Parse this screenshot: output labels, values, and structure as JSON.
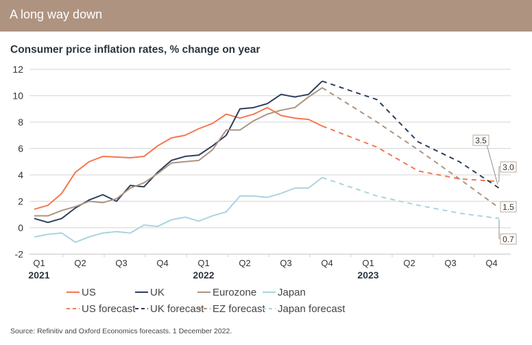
{
  "header": {
    "title": "A long way down"
  },
  "subtitle": "Consumer price inflation rates, % change on year",
  "source": "Source: Refinitiv and Oxford Economics forecasts. 1 December 2022.",
  "chart_data": {
    "type": "line",
    "title": "Consumer price inflation rates, % change on year",
    "ylim": [
      -2,
      12
    ],
    "yticks": [
      -2,
      0,
      2,
      4,
      6,
      8,
      10,
      12
    ],
    "grid": true,
    "legend_position": "bottom",
    "x_tick_labels": [
      {
        "q": "Q1",
        "year": "2021"
      },
      {
        "q": "Q2",
        "year": ""
      },
      {
        "q": "Q3",
        "year": ""
      },
      {
        "q": "Q4",
        "year": ""
      },
      {
        "q": "Q1",
        "year": "2022"
      },
      {
        "q": "Q2",
        "year": ""
      },
      {
        "q": "Q3",
        "year": ""
      },
      {
        "q": "Q4",
        "year": ""
      },
      {
        "q": "Q1",
        "year": "2023"
      },
      {
        "q": "Q2",
        "year": ""
      },
      {
        "q": "Q3",
        "year": ""
      },
      {
        "q": "Q4",
        "year": ""
      }
    ],
    "actual_months": [
      "2021-01",
      "2021-02",
      "2021-03",
      "2021-04",
      "2021-05",
      "2021-06",
      "2021-07",
      "2021-08",
      "2021-09",
      "2021-10",
      "2021-11",
      "2021-12",
      "2022-01",
      "2022-02",
      "2022-03",
      "2022-04",
      "2022-05",
      "2022-06",
      "2022-07",
      "2022-08",
      "2022-09",
      "2022-10"
    ],
    "forecast_months": [
      "2022-10",
      "2023-02",
      "2023-05",
      "2023-08",
      "2023-11"
    ],
    "series": [
      {
        "name": "US",
        "color": "#f4774f",
        "dashed": false,
        "values": [
          1.4,
          1.7,
          2.6,
          4.2,
          5.0,
          5.4,
          5.35,
          5.3,
          5.4,
          6.2,
          6.8,
          7.0,
          7.5,
          7.9,
          8.6,
          8.3,
          8.6,
          9.1,
          8.5,
          8.3,
          8.2,
          7.7
        ]
      },
      {
        "name": "UK",
        "color": "#2d3e5c",
        "dashed": false,
        "values": [
          0.7,
          0.4,
          0.7,
          1.5,
          2.1,
          2.5,
          2.0,
          3.2,
          3.1,
          4.2,
          5.1,
          5.4,
          5.5,
          6.2,
          7.0,
          9.0,
          9.1,
          9.4,
          10.1,
          9.9,
          10.1,
          11.1
        ]
      },
      {
        "name": "Eurozone",
        "color": "#ad9480",
        "dashed": false,
        "values": [
          0.9,
          0.9,
          1.3,
          1.6,
          2.0,
          1.9,
          2.2,
          3.0,
          3.4,
          4.1,
          4.9,
          5.0,
          5.1,
          5.9,
          7.4,
          7.4,
          8.1,
          8.6,
          8.9,
          9.1,
          9.9,
          10.6
        ]
      },
      {
        "name": "Japan",
        "color": "#a9d4df",
        "dashed": false,
        "values": [
          -0.7,
          -0.5,
          -0.4,
          -1.1,
          -0.7,
          -0.4,
          -0.3,
          -0.4,
          0.2,
          0.1,
          0.6,
          0.8,
          0.5,
          0.9,
          1.2,
          2.4,
          2.4,
          2.3,
          2.6,
          3.0,
          3.0,
          3.8
        ]
      },
      {
        "name": "US forecast",
        "color": "#f4774f",
        "dashed": true,
        "values": [
          7.7,
          6.1,
          4.3,
          3.7,
          3.5
        ]
      },
      {
        "name": "UK forecast",
        "color": "#2d3e5c",
        "dashed": true,
        "values": [
          11.1,
          9.7,
          6.5,
          5.0,
          3.0
        ]
      },
      {
        "name": "EZ forecast",
        "color": "#ad9480",
        "dashed": true,
        "values": [
          10.6,
          8.0,
          5.9,
          3.7,
          1.5
        ]
      },
      {
        "name": "Japan forecast",
        "color": "#a9d4df",
        "dashed": true,
        "values": [
          3.8,
          2.4,
          1.7,
          1.1,
          0.7
        ]
      }
    ],
    "end_labels": [
      "3.5",
      "3.0",
      "1.5",
      "0.7"
    ]
  }
}
